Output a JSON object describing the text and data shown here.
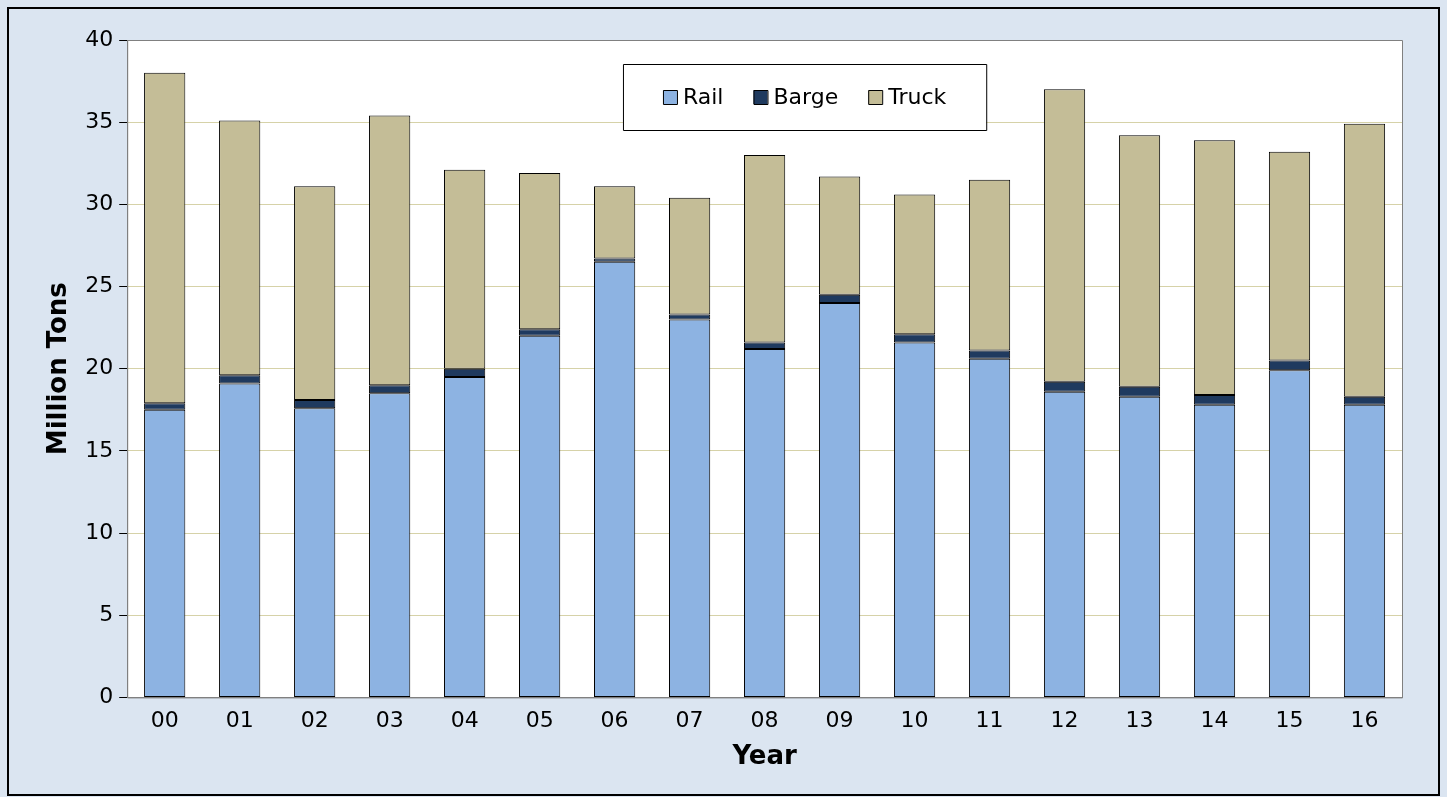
{
  "chart_data": {
    "type": "bar",
    "stacked": true,
    "xlabel": "Year",
    "ylabel": "Million Tons",
    "categories": [
      "00",
      "01",
      "02",
      "03",
      "04",
      "05",
      "06",
      "07",
      "08",
      "09",
      "10",
      "11",
      "12",
      "13",
      "14",
      "15",
      "16"
    ],
    "series": [
      {
        "name": "Rail",
        "color": "#8db3e2",
        "values": [
          17.5,
          19.1,
          17.6,
          18.5,
          19.5,
          22.0,
          26.5,
          23.0,
          21.2,
          24.0,
          21.6,
          20.6,
          18.6,
          18.3,
          17.8,
          19.9,
          17.8
        ]
      },
      {
        "name": "Barge",
        "color": "#1f3a5f",
        "values": [
          0.4,
          0.5,
          0.5,
          0.5,
          0.5,
          0.4,
          0.2,
          0.3,
          0.4,
          0.5,
          0.5,
          0.5,
          0.6,
          0.6,
          0.6,
          0.6,
          0.5
        ]
      },
      {
        "name": "Truck",
        "color": "#c4bd97",
        "values": [
          20.1,
          15.5,
          13.0,
          16.4,
          12.1,
          9.5,
          4.4,
          7.1,
          11.4,
          7.2,
          8.5,
          10.4,
          17.8,
          15.3,
          15.5,
          12.7,
          16.6
        ]
      }
    ],
    "ylim": [
      0,
      40
    ],
    "yticks": [
      0,
      5,
      10,
      15,
      20,
      25,
      30,
      35,
      40
    ],
    "grid": "y",
    "legend": "top"
  }
}
